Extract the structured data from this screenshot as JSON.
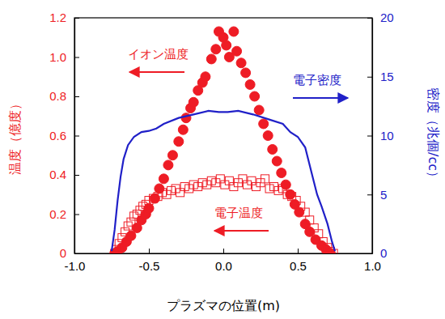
{
  "chart_data": {
    "type": "scatter",
    "xlabel": "プラズマの位置(m)",
    "ylabel": "温度（億度）",
    "y2label": "密度（兆個/cc）",
    "xlim": [
      -1.0,
      1.0
    ],
    "xticks": [
      {
        "value": -1.0,
        "label": "-1.0"
      },
      {
        "value": -0.5,
        "label": "-0.5"
      },
      {
        "value": 0,
        "label": "0.0"
      },
      {
        "value": 0.5,
        "label": "0.5"
      },
      {
        "value": 1.0,
        "label": "1.0"
      }
    ],
    "ylim": [
      0,
      1.2
    ],
    "yticks": [
      0,
      0.2,
      0.4,
      0.6,
      0.8,
      {
        "value": 1.0,
        "label": "1.0"
      },
      1.2
    ],
    "y2lim": [
      0,
      20
    ],
    "y2ticks": [
      0,
      5,
      10,
      15,
      20
    ],
    "grid": false,
    "series": [
      {
        "name": "イオン温度",
        "type": "scatter",
        "marker": "circle",
        "color": "#ee1c25",
        "axis": "y",
        "x": [
          -0.73,
          -0.71,
          -0.68,
          -0.65,
          -0.62,
          -0.58,
          -0.55,
          -0.52,
          -0.5,
          -0.46,
          -0.43,
          -0.4,
          -0.37,
          -0.34,
          -0.3,
          -0.27,
          -0.25,
          -0.22,
          -0.2,
          -0.17,
          -0.14,
          -0.12,
          -0.08,
          -0.05,
          -0.03,
          0.0,
          0.02,
          0.04,
          0.07,
          0.09,
          0.12,
          0.15,
          0.18,
          0.21,
          0.24,
          0.27,
          0.3,
          0.33,
          0.36,
          0.39,
          0.42,
          0.45,
          0.48,
          0.51,
          0.55,
          0.58,
          0.62,
          0.66,
          0.69,
          0.72
        ],
        "values": [
          0.0,
          0.01,
          0.03,
          0.06,
          0.09,
          0.13,
          0.17,
          0.2,
          0.23,
          0.28,
          0.33,
          0.38,
          0.45,
          0.5,
          0.57,
          0.63,
          0.69,
          0.74,
          0.77,
          0.83,
          0.87,
          0.9,
          0.99,
          1.04,
          1.13,
          1.1,
          1.06,
          1.0,
          1.13,
          1.03,
          0.97,
          0.92,
          0.86,
          0.8,
          0.73,
          0.66,
          0.6,
          0.53,
          0.47,
          0.41,
          0.35,
          0.3,
          0.25,
          0.21,
          0.15,
          0.11,
          0.07,
          0.04,
          0.02,
          0.0
        ]
      },
      {
        "name": "電子温度",
        "type": "scatter",
        "marker": "square-open",
        "color": "#ee1c25",
        "axis": "y",
        "x": [
          -0.73,
          -0.72,
          -0.7,
          -0.68,
          -0.66,
          -0.64,
          -0.62,
          -0.6,
          -0.58,
          -0.56,
          -0.54,
          -0.52,
          -0.5,
          -0.47,
          -0.44,
          -0.41,
          -0.38,
          -0.35,
          -0.32,
          -0.29,
          -0.26,
          -0.23,
          -0.2,
          -0.17,
          -0.14,
          -0.11,
          -0.08,
          -0.05,
          -0.02,
          0.01,
          0.04,
          0.07,
          0.1,
          0.13,
          0.16,
          0.19,
          0.22,
          0.25,
          0.28,
          0.31,
          0.34,
          0.37,
          0.4,
          0.43,
          0.46,
          0.49,
          0.52,
          0.55,
          0.58,
          0.61,
          0.64,
          0.67,
          0.7,
          0.72,
          0.74
        ],
        "values": [
          0.0,
          0.02,
          0.05,
          0.08,
          0.11,
          0.14,
          0.16,
          0.19,
          0.2,
          0.22,
          0.24,
          0.25,
          0.27,
          0.28,
          0.29,
          0.31,
          0.3,
          0.32,
          0.33,
          0.31,
          0.34,
          0.33,
          0.35,
          0.34,
          0.36,
          0.35,
          0.37,
          0.36,
          0.38,
          0.35,
          0.37,
          0.34,
          0.36,
          0.38,
          0.35,
          0.37,
          0.34,
          0.36,
          0.38,
          0.33,
          0.34,
          0.32,
          0.33,
          0.3,
          0.29,
          0.27,
          0.24,
          0.21,
          0.17,
          0.13,
          0.1,
          0.06,
          0.03,
          0.01,
          0.0
        ]
      },
      {
        "name": "電子密度",
        "type": "line",
        "line_style": "solid",
        "color": "#2020c8",
        "axis": "y2",
        "x": [
          -0.75,
          -0.73,
          -0.71,
          -0.69,
          -0.67,
          -0.64,
          -0.6,
          -0.55,
          -0.5,
          -0.45,
          -0.4,
          -0.3,
          -0.2,
          -0.1,
          -0.03,
          0.03,
          0.1,
          0.2,
          0.3,
          0.4,
          0.45,
          0.5,
          0.55,
          0.6,
          0.63,
          0.66,
          0.7,
          0.73,
          0.75
        ],
        "values": [
          0.2,
          2,
          4.5,
          6.5,
          8,
          9.2,
          9.9,
          10.3,
          10.4,
          10.6,
          11,
          11.5,
          11.8,
          12.1,
          12.0,
          12.0,
          12.1,
          11.8,
          11.4,
          11.0,
          10.3,
          9.9,
          9.0,
          6.5,
          5.0,
          4.0,
          2.5,
          1.0,
          0.2
        ]
      }
    ]
  }
}
